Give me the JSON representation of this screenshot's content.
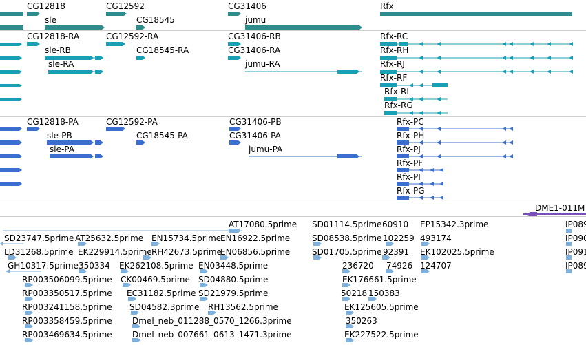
{
  "colors": {
    "gene": "#2f8c8c",
    "mrna_ra": "#1aa0b4",
    "protein": "#3a6fd0",
    "contig": "#7a4fb8",
    "est": "#7fb0dc",
    "separator": "#cfcfcf"
  },
  "gene_track": {
    "labels": [
      "CG12818",
      "CG12592",
      "CG31406",
      "Rfx",
      "sle",
      "CG18545",
      "jumu"
    ]
  },
  "mrna_track": {
    "labels": [
      "CG12818-RA",
      "CG12592-RA",
      "CG31406-RB",
      "Rfx-RC",
      "sle-RB",
      "CG18545-RA",
      "CG31406-RA",
      "Rfx-RH",
      "sle-RA",
      "jumu-RA",
      "Rfx-RJ",
      "Rfx-RF",
      "Rfx-RI",
      "Rfx-RG"
    ]
  },
  "protein_track": {
    "labels": [
      "CG12818-PA",
      "CG12592-PA",
      "CG31406-PB",
      "Rfx-PC",
      "sle-PB",
      "CG18545-PA",
      "CG31406-PA",
      "Rfx-PH",
      "sle-PA",
      "jumu-PA",
      "Rfx-PJ",
      "Rfx-PF",
      "Rfx-PI",
      "Rfx-PG"
    ]
  },
  "contig_track": {
    "labels": [
      "DME1-011M"
    ]
  },
  "est_track": {
    "labels": [
      "AT17080.5prime",
      "SD01114.5prime",
      "60910",
      "EP15342.3prime",
      "IP089",
      "SD23747.5prime",
      "AT25632.5prime",
      "EN15734.5prime",
      "EN16922.5prime",
      "SD08538.5prime",
      "102259",
      "493174",
      "IP090",
      "LD31268.5prime",
      "EK229914.5prime",
      "RH42673.5prime",
      "EN06856.5prime",
      "SD01705.5prime",
      "92391",
      "EK102025.5prime",
      "IP091",
      "GH10317.5prime",
      "350334",
      "EK262108.5prime",
      "EN03448.5prime",
      "236720",
      "74926",
      "124707",
      "IP089",
      "RP003506099.5prime",
      "CK00469.5prime",
      "SD04880.5prime",
      "EK176661.5prime",
      "RP003350517.5prime",
      "EC31182.5prime",
      "SD21979.5prime",
      "50218",
      "150383",
      "RP003241158.5prime",
      "SD04582.3prime",
      "RH13562.5prime",
      "EK125605.5prime",
      "RP003358459.5prime",
      "Dmel_neb_011288_0570_1266.3prime",
      "350263",
      "RP003469634.5prime",
      "Dmel_neb_007661_0613_1471.3prime",
      "EK227522.5prime"
    ]
  }
}
